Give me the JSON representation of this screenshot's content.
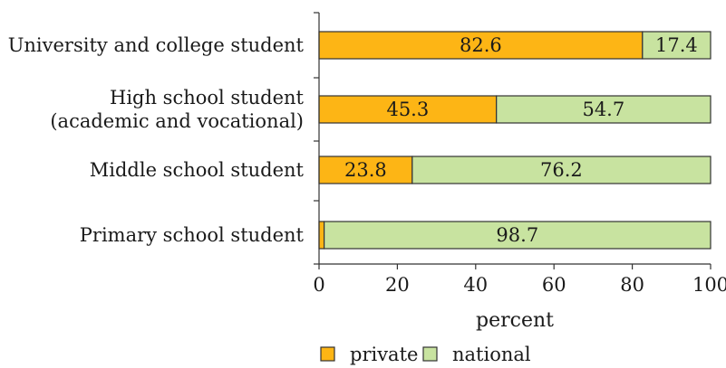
{
  "chart_data": {
    "type": "bar",
    "orientation": "horizontal",
    "stacked": true,
    "title": "",
    "xlabel": "percent",
    "ylabel": "",
    "xlim": [
      0,
      100
    ],
    "xticks": [
      0,
      20,
      40,
      60,
      80,
      100
    ],
    "grid": false,
    "legend_position": "bottom",
    "categories": [
      [
        "University and college student"
      ],
      [
        "High school student",
        "(academic and vocational)"
      ],
      [
        "Middle school student"
      ],
      [
        "Primary school student"
      ]
    ],
    "series": [
      {
        "name": "private",
        "color": "#FDB515",
        "values": [
          82.6,
          45.3,
          23.8,
          1.3
        ]
      },
      {
        "name": "national",
        "color": "#C8E3A0",
        "values": [
          17.4,
          54.7,
          76.2,
          98.7
        ]
      }
    ],
    "data_labels": [
      [
        "82.6",
        "45.3",
        "23.8",
        "1.3"
      ],
      [
        "17.4",
        "54.7",
        "76.2",
        "98.7"
      ]
    ]
  }
}
